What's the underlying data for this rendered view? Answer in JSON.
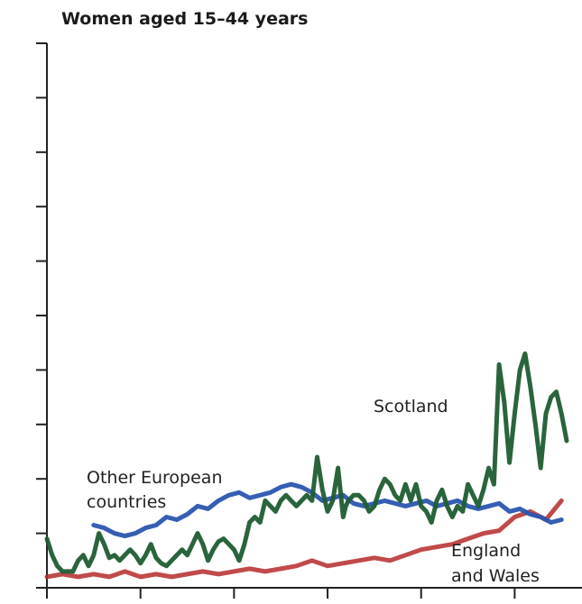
{
  "chart_data": {
    "type": "line",
    "title": "Women aged 15–44 years",
    "xlabel": "",
    "ylabel": "",
    "xlim": [
      0,
      100
    ],
    "ylim": [
      0,
      10
    ],
    "grid": false,
    "legend": "inline",
    "y_ticks": [
      0,
      1,
      2,
      3,
      4,
      5,
      6,
      7,
      8,
      9,
      10
    ],
    "x_ticks": [
      0,
      18,
      36,
      54,
      72,
      90
    ],
    "series": [
      {
        "name": "Scotland",
        "color": "#1f5c32",
        "x": [
          0,
          1,
          2,
          3,
          4,
          5,
          6,
          7,
          8,
          9,
          10,
          11,
          12,
          13,
          14,
          15,
          16,
          17,
          18,
          19,
          20,
          21,
          22,
          23,
          24,
          25,
          26,
          27,
          28,
          29,
          30,
          31,
          32,
          33,
          34,
          35,
          36,
          37,
          38,
          39,
          40,
          41,
          42,
          43,
          44,
          45,
          46,
          47,
          48,
          49,
          50,
          51,
          52,
          53,
          54,
          55,
          56,
          57,
          57.5,
          58,
          59,
          60,
          61,
          62,
          63,
          64,
          65,
          66,
          67,
          68,
          69,
          70,
          71,
          72,
          73,
          74,
          75,
          76,
          77,
          78,
          79,
          80,
          81,
          82,
          83,
          84,
          85,
          86,
          87,
          88,
          89,
          90,
          91,
          92,
          93,
          94,
          95,
          96,
          97,
          98,
          99,
          100
        ],
        "values": [
          0.9,
          0.6,
          0.4,
          0.3,
          0.3,
          0.3,
          0.5,
          0.6,
          0.4,
          0.6,
          1.0,
          0.8,
          0.55,
          0.6,
          0.5,
          0.6,
          0.7,
          0.6,
          0.45,
          0.6,
          0.8,
          0.55,
          0.45,
          0.4,
          0.5,
          0.6,
          0.7,
          0.6,
          0.8,
          1.0,
          0.8,
          0.5,
          0.7,
          0.85,
          0.9,
          0.8,
          0.7,
          0.5,
          0.8,
          1.2,
          1.3,
          1.2,
          1.6,
          1.5,
          1.4,
          1.6,
          1.7,
          1.6,
          1.5,
          1.6,
          1.7,
          1.6,
          2.4,
          1.8,
          1.4,
          1.6,
          2.2,
          1.3,
          1.5,
          1.6,
          1.7,
          1.7,
          1.6,
          1.4,
          1.5,
          1.8,
          2.0,
          1.9,
          1.7,
          1.6,
          1.9,
          1.6,
          1.9,
          1.5,
          1.4,
          1.2,
          1.6,
          1.8,
          1.5,
          1.3,
          1.5,
          1.4,
          1.9,
          1.7,
          1.5,
          1.8,
          2.2,
          1.9,
          4.1,
          3.4,
          2.3,
          3.2,
          4.0,
          4.3,
          3.7,
          3.0,
          2.2,
          3.2,
          3.5,
          3.6,
          3.2,
          2.7
        ]
      },
      {
        "name": "Other European countries",
        "color": "#2a55b0",
        "x": [
          9,
          11,
          13,
          15,
          17,
          19,
          21,
          23,
          25,
          27,
          29,
          31,
          33,
          35,
          37,
          39,
          41,
          43,
          45,
          47,
          49,
          51,
          53,
          55,
          57,
          59,
          61,
          63,
          65,
          67,
          69,
          71,
          73,
          75,
          77,
          79,
          81,
          83,
          85,
          87,
          89,
          91,
          93,
          95,
          97,
          99
        ],
        "values": [
          1.15,
          1.1,
          1.0,
          0.95,
          1.0,
          1.1,
          1.15,
          1.3,
          1.25,
          1.35,
          1.5,
          1.45,
          1.6,
          1.7,
          1.75,
          1.65,
          1.7,
          1.75,
          1.85,
          1.9,
          1.85,
          1.75,
          1.6,
          1.65,
          1.7,
          1.55,
          1.5,
          1.55,
          1.6,
          1.55,
          1.5,
          1.55,
          1.6,
          1.5,
          1.55,
          1.6,
          1.5,
          1.45,
          1.5,
          1.55,
          1.4,
          1.45,
          1.35,
          1.3,
          1.2,
          1.25
        ]
      },
      {
        "name": "England and Wales",
        "color": "#b52a2a",
        "x": [
          0,
          3,
          6,
          9,
          12,
          15,
          18,
          21,
          24,
          27,
          30,
          33,
          36,
          39,
          42,
          45,
          48,
          51,
          54,
          57,
          60,
          63,
          66,
          69,
          72,
          75,
          78,
          81,
          84,
          87,
          90,
          93,
          96,
          99
        ],
        "values": [
          0.2,
          0.25,
          0.2,
          0.25,
          0.2,
          0.3,
          0.2,
          0.25,
          0.2,
          0.25,
          0.3,
          0.25,
          0.3,
          0.35,
          0.3,
          0.35,
          0.4,
          0.5,
          0.4,
          0.45,
          0.5,
          0.55,
          0.5,
          0.6,
          0.7,
          0.75,
          0.8,
          0.9,
          1.0,
          1.05,
          1.3,
          1.4,
          1.25,
          1.6
        ]
      }
    ],
    "annotations": [
      {
        "text": "Scotland"
      },
      {
        "text": "Other European"
      },
      {
        "text": "countries"
      },
      {
        "text": "England"
      },
      {
        "text": "and Wales"
      }
    ]
  }
}
